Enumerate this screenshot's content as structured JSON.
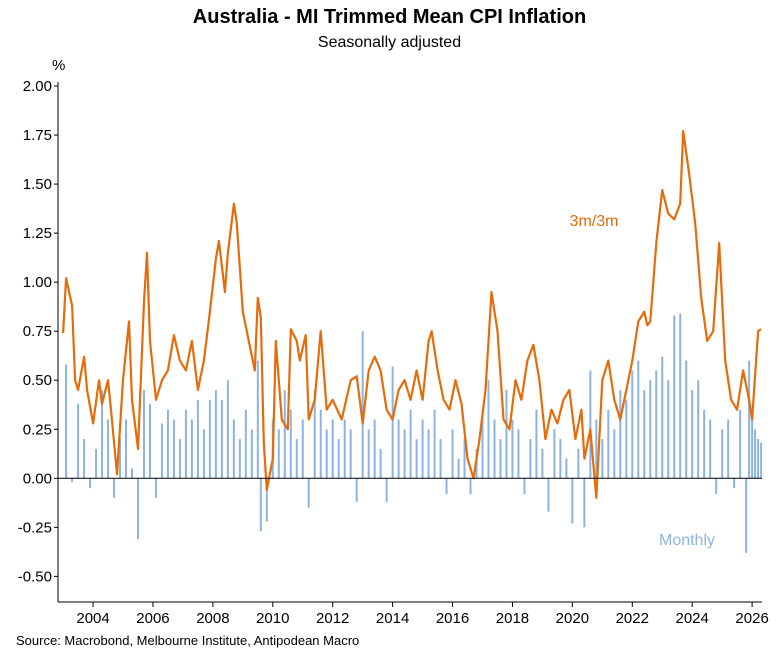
{
  "chart_data": {
    "type": "bar+line",
    "title": "Australia - MI Trimmed Mean CPI Inflation",
    "subtitle": "Seasonally adjusted",
    "ylabel": "%",
    "ylim": [
      -0.6,
      2.0
    ],
    "yticks": [
      2.0,
      1.75,
      1.5,
      1.25,
      1.0,
      0.75,
      0.5,
      0.25,
      0.0,
      -0.25,
      -0.5
    ],
    "ytick_labels": [
      "2.00",
      "1.75",
      "1.50",
      "1.25",
      "1.00",
      "0.75",
      "0.50",
      "0.25",
      "0.00",
      "-0.25",
      "-0.50"
    ],
    "xlim": [
      2002.83,
      2026.33
    ],
    "xticks": [
      2004,
      2006,
      2008,
      2010,
      2012,
      2014,
      2016,
      2018,
      2020,
      2022,
      2024,
      2026
    ],
    "xtick_labels": [
      "2004",
      "2006",
      "2008",
      "2010",
      "2012",
      "2014",
      "2016",
      "2018",
      "2020",
      "2022",
      "2024",
      "2026"
    ],
    "source": "Source: Macrobond, Melbourne Institute, Antipodean Macro",
    "series": [
      {
        "name": "3m/3m",
        "type": "line",
        "color": "#E46C0A",
        "points": [
          [
            2003.0,
            0.74
          ],
          [
            2003.1,
            1.02
          ],
          [
            2003.3,
            0.88
          ],
          [
            2003.4,
            0.5
          ],
          [
            2003.5,
            0.45
          ],
          [
            2003.7,
            0.62
          ],
          [
            2003.8,
            0.45
          ],
          [
            2004.0,
            0.28
          ],
          [
            2004.2,
            0.5
          ],
          [
            2004.3,
            0.38
          ],
          [
            2004.5,
            0.5
          ],
          [
            2004.6,
            0.35
          ],
          [
            2004.8,
            0.02
          ],
          [
            2005.0,
            0.5
          ],
          [
            2005.2,
            0.8
          ],
          [
            2005.3,
            0.4
          ],
          [
            2005.5,
            0.15
          ],
          [
            2005.7,
            0.9
          ],
          [
            2005.8,
            1.15
          ],
          [
            2005.9,
            0.7
          ],
          [
            2006.1,
            0.4
          ],
          [
            2006.3,
            0.5
          ],
          [
            2006.5,
            0.55
          ],
          [
            2006.7,
            0.73
          ],
          [
            2006.9,
            0.6
          ],
          [
            2007.1,
            0.55
          ],
          [
            2007.3,
            0.7
          ],
          [
            2007.5,
            0.45
          ],
          [
            2007.7,
            0.6
          ],
          [
            2007.9,
            0.85
          ],
          [
            2008.1,
            1.12
          ],
          [
            2008.2,
            1.21
          ],
          [
            2008.4,
            0.95
          ],
          [
            2008.5,
            1.15
          ],
          [
            2008.7,
            1.4
          ],
          [
            2008.8,
            1.3
          ],
          [
            2009.0,
            0.85
          ],
          [
            2009.2,
            0.7
          ],
          [
            2009.4,
            0.55
          ],
          [
            2009.5,
            0.92
          ],
          [
            2009.6,
            0.82
          ],
          [
            2009.7,
            0.18
          ],
          [
            2009.8,
            -0.06
          ],
          [
            2010.0,
            0.1
          ],
          [
            2010.1,
            0.7
          ],
          [
            2010.3,
            0.3
          ],
          [
            2010.5,
            0.25
          ],
          [
            2010.6,
            0.76
          ],
          [
            2010.8,
            0.7
          ],
          [
            2010.9,
            0.6
          ],
          [
            2011.1,
            0.73
          ],
          [
            2011.2,
            0.3
          ],
          [
            2011.4,
            0.4
          ],
          [
            2011.6,
            0.75
          ],
          [
            2011.8,
            0.35
          ],
          [
            2012.0,
            0.4
          ],
          [
            2012.3,
            0.3
          ],
          [
            2012.6,
            0.5
          ],
          [
            2012.8,
            0.52
          ],
          [
            2013.0,
            0.28
          ],
          [
            2013.2,
            0.55
          ],
          [
            2013.4,
            0.62
          ],
          [
            2013.6,
            0.55
          ],
          [
            2013.8,
            0.35
          ],
          [
            2014.0,
            0.3
          ],
          [
            2014.2,
            0.45
          ],
          [
            2014.4,
            0.5
          ],
          [
            2014.6,
            0.4
          ],
          [
            2014.8,
            0.55
          ],
          [
            2015.0,
            0.4
          ],
          [
            2015.2,
            0.7
          ],
          [
            2015.3,
            0.75
          ],
          [
            2015.5,
            0.55
          ],
          [
            2015.7,
            0.4
          ],
          [
            2015.9,
            0.35
          ],
          [
            2016.1,
            0.5
          ],
          [
            2016.3,
            0.38
          ],
          [
            2016.5,
            0.1
          ],
          [
            2016.7,
            0.0
          ],
          [
            2016.9,
            0.2
          ],
          [
            2017.1,
            0.45
          ],
          [
            2017.3,
            0.95
          ],
          [
            2017.5,
            0.75
          ],
          [
            2017.7,
            0.3
          ],
          [
            2017.9,
            0.25
          ],
          [
            2018.1,
            0.5
          ],
          [
            2018.3,
            0.4
          ],
          [
            2018.5,
            0.6
          ],
          [
            2018.7,
            0.68
          ],
          [
            2018.9,
            0.5
          ],
          [
            2019.1,
            0.2
          ],
          [
            2019.3,
            0.35
          ],
          [
            2019.5,
            0.28
          ],
          [
            2019.7,
            0.4
          ],
          [
            2019.9,
            0.45
          ],
          [
            2020.1,
            0.2
          ],
          [
            2020.3,
            0.35
          ],
          [
            2020.4,
            0.1
          ],
          [
            2020.6,
            0.25
          ],
          [
            2020.8,
            -0.1
          ],
          [
            2021.0,
            0.5
          ],
          [
            2021.2,
            0.6
          ],
          [
            2021.4,
            0.4
          ],
          [
            2021.6,
            0.3
          ],
          [
            2021.8,
            0.45
          ],
          [
            2022.0,
            0.6
          ],
          [
            2022.2,
            0.8
          ],
          [
            2022.4,
            0.85
          ],
          [
            2022.5,
            0.78
          ],
          [
            2022.6,
            0.8
          ],
          [
            2022.8,
            1.2
          ],
          [
            2023.0,
            1.47
          ],
          [
            2023.2,
            1.35
          ],
          [
            2023.4,
            1.32
          ],
          [
            2023.6,
            1.4
          ],
          [
            2023.7,
            1.77
          ],
          [
            2023.9,
            1.55
          ],
          [
            2024.1,
            1.3
          ],
          [
            2024.3,
            0.92
          ],
          [
            2024.5,
            0.7
          ],
          [
            2024.7,
            0.75
          ],
          [
            2024.9,
            1.2
          ],
          [
            2025.1,
            0.6
          ],
          [
            2025.3,
            0.4
          ],
          [
            2025.5,
            0.35
          ],
          [
            2025.7,
            0.55
          ],
          [
            2025.9,
            0.4
          ],
          [
            2026.0,
            0.3
          ],
          [
            2026.2,
            0.75
          ],
          [
            2026.3,
            0.76
          ]
        ]
      },
      {
        "name": "Monthly",
        "type": "bar",
        "color": "#8DB3E2",
        "points": [
          [
            2003.1,
            0.58
          ],
          [
            2003.3,
            -0.02
          ],
          [
            2003.5,
            0.38
          ],
          [
            2003.7,
            0.2
          ],
          [
            2003.9,
            -0.05
          ],
          [
            2004.1,
            0.15
          ],
          [
            2004.3,
            0.45
          ],
          [
            2004.5,
            0.3
          ],
          [
            2004.7,
            -0.1
          ],
          [
            2004.9,
            0.2
          ],
          [
            2005.1,
            0.3
          ],
          [
            2005.3,
            0.05
          ],
          [
            2005.5,
            -0.31
          ],
          [
            2005.7,
            0.45
          ],
          [
            2005.9,
            0.38
          ],
          [
            2006.1,
            -0.1
          ],
          [
            2006.3,
            0.28
          ],
          [
            2006.5,
            0.35
          ],
          [
            2006.7,
            0.3
          ],
          [
            2006.9,
            0.2
          ],
          [
            2007.1,
            0.35
          ],
          [
            2007.3,
            0.3
          ],
          [
            2007.5,
            0.4
          ],
          [
            2007.7,
            0.25
          ],
          [
            2007.9,
            0.4
          ],
          [
            2008.1,
            0.45
          ],
          [
            2008.3,
            0.4
          ],
          [
            2008.5,
            0.5
          ],
          [
            2008.7,
            0.3
          ],
          [
            2008.9,
            0.2
          ],
          [
            2009.1,
            0.35
          ],
          [
            2009.3,
            0.25
          ],
          [
            2009.5,
            0.6
          ],
          [
            2009.6,
            -0.27
          ],
          [
            2009.8,
            -0.22
          ],
          [
            2010.0,
            0.3
          ],
          [
            2010.2,
            0.25
          ],
          [
            2010.4,
            0.45
          ],
          [
            2010.6,
            0.35
          ],
          [
            2010.8,
            0.2
          ],
          [
            2011.0,
            0.3
          ],
          [
            2011.2,
            -0.15
          ],
          [
            2011.4,
            0.45
          ],
          [
            2011.6,
            0.35
          ],
          [
            2011.8,
            0.25
          ],
          [
            2012.0,
            0.3
          ],
          [
            2012.2,
            0.2
          ],
          [
            2012.4,
            0.3
          ],
          [
            2012.6,
            0.25
          ],
          [
            2012.8,
            -0.12
          ],
          [
            2013.0,
            0.75
          ],
          [
            2013.2,
            0.25
          ],
          [
            2013.4,
            0.3
          ],
          [
            2013.6,
            0.15
          ],
          [
            2013.8,
            -0.12
          ],
          [
            2014.0,
            0.57
          ],
          [
            2014.2,
            0.3
          ],
          [
            2014.4,
            0.25
          ],
          [
            2014.6,
            0.35
          ],
          [
            2014.8,
            0.2
          ],
          [
            2015.0,
            0.3
          ],
          [
            2015.2,
            0.25
          ],
          [
            2015.4,
            0.35
          ],
          [
            2015.6,
            0.2
          ],
          [
            2015.8,
            -0.08
          ],
          [
            2016.0,
            0.25
          ],
          [
            2016.2,
            0.1
          ],
          [
            2016.4,
            0.2
          ],
          [
            2016.6,
            -0.08
          ],
          [
            2016.8,
            0.15
          ],
          [
            2017.0,
            0.35
          ],
          [
            2017.2,
            0.5
          ],
          [
            2017.4,
            0.3
          ],
          [
            2017.6,
            0.2
          ],
          [
            2017.8,
            0.45
          ],
          [
            2018.0,
            0.3
          ],
          [
            2018.2,
            0.25
          ],
          [
            2018.4,
            -0.08
          ],
          [
            2018.6,
            0.2
          ],
          [
            2018.8,
            0.35
          ],
          [
            2019.0,
            0.15
          ],
          [
            2019.2,
            -0.17
          ],
          [
            2019.4,
            0.25
          ],
          [
            2019.6,
            0.2
          ],
          [
            2019.8,
            0.1
          ],
          [
            2020.0,
            -0.23
          ],
          [
            2020.2,
            0.15
          ],
          [
            2020.4,
            -0.25
          ],
          [
            2020.6,
            0.55
          ],
          [
            2020.8,
            0.3
          ],
          [
            2021.0,
            0.2
          ],
          [
            2021.2,
            0.35
          ],
          [
            2021.4,
            0.25
          ],
          [
            2021.6,
            0.45
          ],
          [
            2021.8,
            0.4
          ],
          [
            2022.0,
            0.55
          ],
          [
            2022.2,
            0.6
          ],
          [
            2022.4,
            0.45
          ],
          [
            2022.6,
            0.5
          ],
          [
            2022.8,
            0.55
          ],
          [
            2023.0,
            0.62
          ],
          [
            2023.2,
            0.5
          ],
          [
            2023.4,
            0.83
          ],
          [
            2023.6,
            0.84
          ],
          [
            2023.8,
            0.6
          ],
          [
            2024.0,
            0.45
          ],
          [
            2024.2,
            0.5
          ],
          [
            2024.4,
            0.35
          ],
          [
            2024.6,
            0.3
          ],
          [
            2024.8,
            -0.08
          ],
          [
            2025.0,
            0.25
          ],
          [
            2025.2,
            0.3
          ],
          [
            2025.4,
            -0.05
          ],
          [
            2025.6,
            0.35
          ],
          [
            2025.8,
            -0.38
          ],
          [
            2025.9,
            0.6
          ],
          [
            2026.0,
            0.3
          ],
          [
            2026.1,
            0.25
          ],
          [
            2026.2,
            0.2
          ],
          [
            2026.3,
            0.18
          ]
        ]
      }
    ],
    "annotations": [
      {
        "text": "3m/3m",
        "series": "3m/3m",
        "color": "#E46C0A"
      },
      {
        "text": "Monthly",
        "series": "Monthly",
        "color": "#8DB3E2"
      }
    ]
  }
}
